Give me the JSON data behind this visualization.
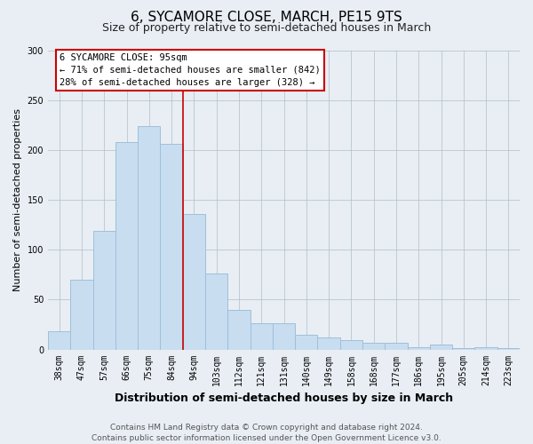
{
  "title": "6, SYCAMORE CLOSE, MARCH, PE15 9TS",
  "subtitle": "Size of property relative to semi-detached houses in March",
  "xlabel": "Distribution of semi-detached houses by size in March",
  "ylabel": "Number of semi-detached properties",
  "bar_labels": [
    "38sqm",
    "47sqm",
    "57sqm",
    "66sqm",
    "75sqm",
    "84sqm",
    "94sqm",
    "103sqm",
    "112sqm",
    "121sqm",
    "131sqm",
    "140sqm",
    "149sqm",
    "158sqm",
    "168sqm",
    "177sqm",
    "186sqm",
    "195sqm",
    "205sqm",
    "214sqm",
    "223sqm"
  ],
  "bar_values": [
    18,
    70,
    119,
    208,
    224,
    206,
    136,
    76,
    40,
    26,
    26,
    15,
    12,
    9,
    7,
    7,
    2,
    5,
    1,
    2,
    1
  ],
  "bar_color": "#c8ddf0",
  "bar_edge_color": "#a0bfd8",
  "vline_color": "#cc0000",
  "annotation_title": "6 SYCAMORE CLOSE: 95sqm",
  "annotation_smaller": "← 71% of semi-detached houses are smaller (842)",
  "annotation_larger": "28% of semi-detached houses are larger (328) →",
  "box_facecolor": "#ffffff",
  "box_edgecolor": "#cc0000",
  "ylim": [
    0,
    300
  ],
  "yticks": [
    0,
    50,
    100,
    150,
    200,
    250,
    300
  ],
  "footer1": "Contains HM Land Registry data © Crown copyright and database right 2024.",
  "footer2": "Contains public sector information licensed under the Open Government Licence v3.0.",
  "bg_color": "#e8eef4",
  "plot_bg_color": "#e8eef4",
  "title_fontsize": 11,
  "subtitle_fontsize": 9,
  "xlabel_fontsize": 9,
  "ylabel_fontsize": 8,
  "tick_fontsize": 7,
  "footer_fontsize": 6.5
}
